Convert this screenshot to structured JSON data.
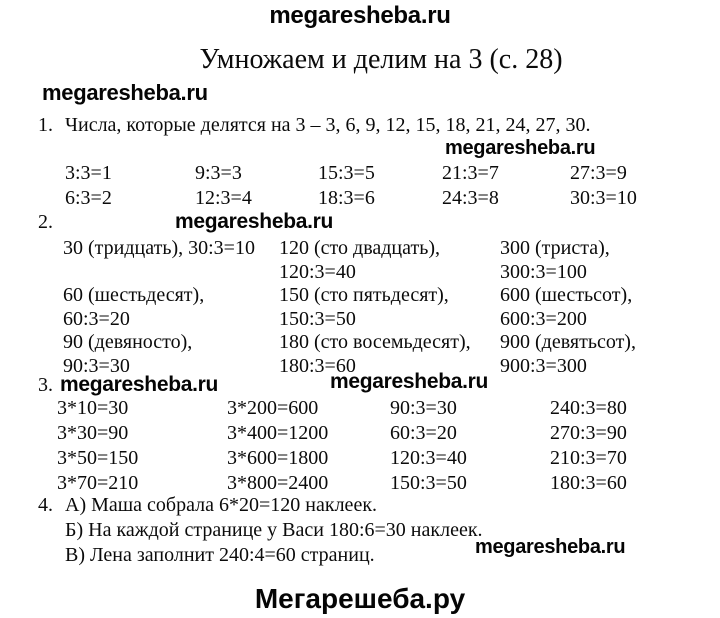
{
  "watermark_text": "megaresheba.ru",
  "footer_brand": "Мегарешеба.ру",
  "title": "Умножаем и делим на 3 (с. 28)",
  "tasks": {
    "t1": {
      "number": "1.",
      "text": "Числа, которые делятся на 3 – 3, 6, 9, 12, 15, 18, 21, 24, 27, 30.",
      "rows": [
        [
          "3:3=1",
          "9:3=3",
          "15:3=5",
          "21:3=7",
          "27:3=9"
        ],
        [
          "6:3=2",
          "12:3=4",
          "18:3=6",
          "24:3=8",
          "30:3=10"
        ]
      ]
    },
    "t2": {
      "number": "2.",
      "cells": [
        {
          "l1": "30 (тридцать), 30:3=10",
          "l2": ""
        },
        {
          "l1": "120 (сто двадцать),",
          "l2": "120:3=40"
        },
        {
          "l1": "300 (триста),",
          "l2": "300:3=100"
        },
        {
          "l1": "60 (шестьдесят),",
          "l2": "60:3=20"
        },
        {
          "l1": "150 (сто пятьдесят),",
          "l2": "150:3=50"
        },
        {
          "l1": "600 (шестьсот),",
          "l2": "600:3=200"
        },
        {
          "l1": "90 (девяносто),",
          "l2": "90:3=30"
        },
        {
          "l1": "180 (сто восемьдесят),",
          "l2": "180:3=60"
        },
        {
          "l1": "900 (девятьсот),",
          "l2": "900:3=300"
        }
      ]
    },
    "t3": {
      "number": "3.",
      "rows": [
        [
          "3*10=30",
          "3*200=600",
          "90:3=30",
          "240:3=80"
        ],
        [
          "3*30=90",
          "3*400=1200",
          "60:3=20",
          "270:3=90"
        ],
        [
          "3*50=150",
          "3*600=1800",
          "120:3=40",
          "210:3=70"
        ],
        [
          "3*70=210",
          "3*800=2400",
          "150:3=50",
          "180:3=60"
        ]
      ]
    },
    "t4": {
      "number": "4.",
      "lines": [
        "А) Маша собрала 6*20=120 наклеек.",
        "Б) На каждой странице у Васи 180:6=30 наклеек.",
        "В) Лена заполнит 240:4=60 страниц."
      ]
    }
  },
  "colors": {
    "background": "#ffffff",
    "text": "#0b0b0b"
  }
}
